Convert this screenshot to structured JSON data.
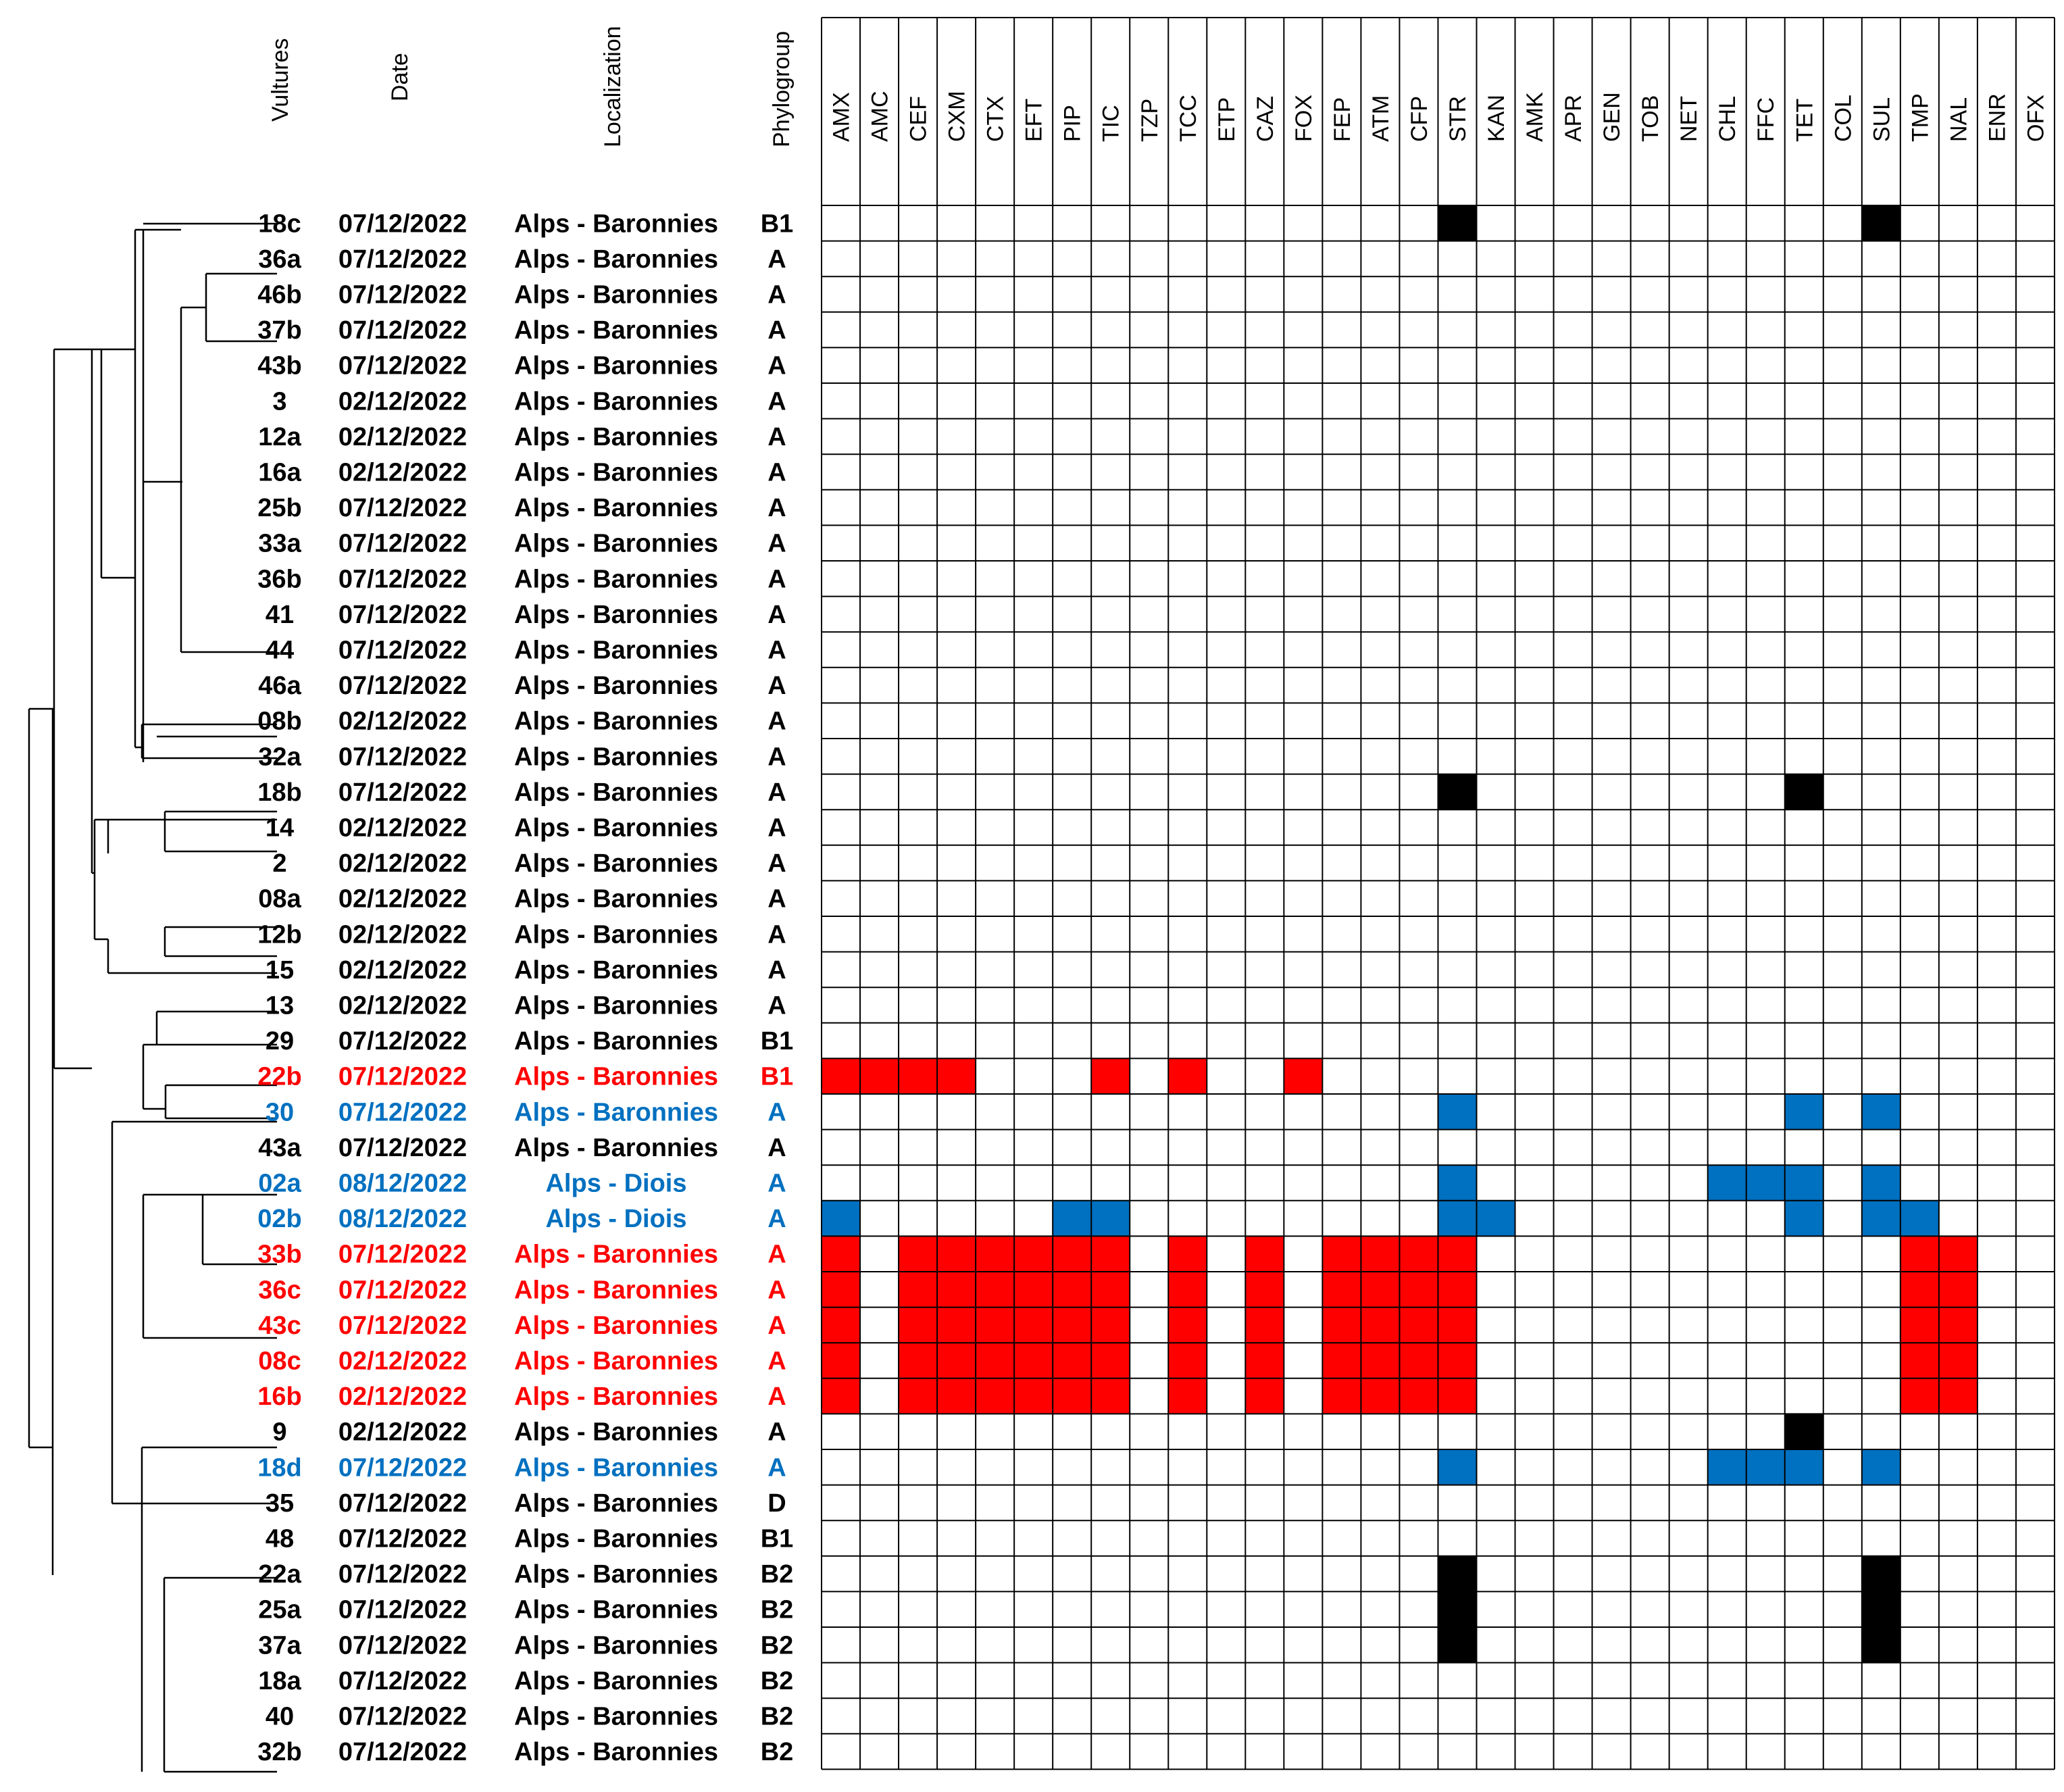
{
  "colors": {
    "black": "#000000",
    "red": "#ff0000",
    "blue": "#0070c0",
    "grid": "#000000",
    "background": "#ffffff"
  },
  "headers": {
    "vultures": "Vultures",
    "date": "Date",
    "localization": "Localization",
    "phylogroup": "Phylogroup"
  },
  "antibiotics": [
    "AMX",
    "AMC",
    "CEF",
    "CXM",
    "CTX",
    "EFT",
    "PIP",
    "TIC",
    "TZP",
    "TCC",
    "ETP",
    "CAZ",
    "FOX",
    "FEP",
    "ATM",
    "CFP",
    "STR",
    "KAN",
    "AMK",
    "APR",
    "GEN",
    "TOB",
    "NET",
    "CHL",
    "FFC",
    "TET",
    "COL",
    "SUL",
    "TMP",
    "NAL",
    "ENR",
    "OFX"
  ],
  "rows": [
    {
      "id": "18c",
      "date": "07/12/2022",
      "loc": "Alps - Baronnies",
      "phylo": "B1",
      "label_color": "black",
      "resistance": [
        [
          "STR",
          "black"
        ],
        [
          "SUL",
          "black"
        ]
      ]
    },
    {
      "id": "36a",
      "date": "07/12/2022",
      "loc": "Alps - Baronnies",
      "phylo": "A",
      "label_color": "black",
      "resistance": []
    },
    {
      "id": "46b",
      "date": "07/12/2022",
      "loc": "Alps - Baronnies",
      "phylo": "A",
      "label_color": "black",
      "resistance": []
    },
    {
      "id": "37b",
      "date": "07/12/2022",
      "loc": "Alps - Baronnies",
      "phylo": "A",
      "label_color": "black",
      "resistance": []
    },
    {
      "id": "43b",
      "date": "07/12/2022",
      "loc": "Alps - Baronnies",
      "phylo": "A",
      "label_color": "black",
      "resistance": []
    },
    {
      "id": "3",
      "date": "02/12/2022",
      "loc": "Alps - Baronnies",
      "phylo": "A",
      "label_color": "black",
      "resistance": []
    },
    {
      "id": "12a",
      "date": "02/12/2022",
      "loc": "Alps - Baronnies",
      "phylo": "A",
      "label_color": "black",
      "resistance": []
    },
    {
      "id": "16a",
      "date": "02/12/2022",
      "loc": "Alps - Baronnies",
      "phylo": "A",
      "label_color": "black",
      "resistance": []
    },
    {
      "id": "25b",
      "date": "07/12/2022",
      "loc": "Alps - Baronnies",
      "phylo": "A",
      "label_color": "black",
      "resistance": []
    },
    {
      "id": "33a",
      "date": "07/12/2022",
      "loc": "Alps - Baronnies",
      "phylo": "A",
      "label_color": "black",
      "resistance": []
    },
    {
      "id": "36b",
      "date": "07/12/2022",
      "loc": "Alps - Baronnies",
      "phylo": "A",
      "label_color": "black",
      "resistance": []
    },
    {
      "id": "41",
      "date": "07/12/2022",
      "loc": "Alps - Baronnies",
      "phylo": "A",
      "label_color": "black",
      "resistance": []
    },
    {
      "id": "44",
      "date": "07/12/2022",
      "loc": "Alps - Baronnies",
      "phylo": "A",
      "label_color": "black",
      "resistance": []
    },
    {
      "id": "46a",
      "date": "07/12/2022",
      "loc": "Alps - Baronnies",
      "phylo": "A",
      "label_color": "black",
      "resistance": []
    },
    {
      "id": "08b",
      "date": "02/12/2022",
      "loc": "Alps - Baronnies",
      "phylo": "A",
      "label_color": "black",
      "resistance": []
    },
    {
      "id": "32a",
      "date": "07/12/2022",
      "loc": "Alps - Baronnies",
      "phylo": "A",
      "label_color": "black",
      "resistance": []
    },
    {
      "id": "18b",
      "date": "07/12/2022",
      "loc": "Alps - Baronnies",
      "phylo": "A",
      "label_color": "black",
      "resistance": [
        [
          "STR",
          "black"
        ],
        [
          "TET",
          "black"
        ]
      ]
    },
    {
      "id": "14",
      "date": "02/12/2022",
      "loc": "Alps - Baronnies",
      "phylo": "A",
      "label_color": "black",
      "resistance": []
    },
    {
      "id": "2",
      "date": "02/12/2022",
      "loc": "Alps - Baronnies",
      "phylo": "A",
      "label_color": "black",
      "resistance": []
    },
    {
      "id": "08a",
      "date": "02/12/2022",
      "loc": "Alps - Baronnies",
      "phylo": "A",
      "label_color": "black",
      "resistance": []
    },
    {
      "id": "12b",
      "date": "02/12/2022",
      "loc": "Alps - Baronnies",
      "phylo": "A",
      "label_color": "black",
      "resistance": []
    },
    {
      "id": "15",
      "date": "02/12/2022",
      "loc": "Alps - Baronnies",
      "phylo": "A",
      "label_color": "black",
      "resistance": []
    },
    {
      "id": "13",
      "date": "02/12/2022",
      "loc": "Alps - Baronnies",
      "phylo": "A",
      "label_color": "black",
      "resistance": []
    },
    {
      "id": "29",
      "date": "07/12/2022",
      "loc": "Alps - Baronnies",
      "phylo": "B1",
      "label_color": "black",
      "resistance": []
    },
    {
      "id": "22b",
      "date": "07/12/2022",
      "loc": "Alps - Baronnies",
      "phylo": "B1",
      "label_color": "red",
      "resistance": [
        [
          "AMX",
          "red"
        ],
        [
          "AMC",
          "red"
        ],
        [
          "CEF",
          "red"
        ],
        [
          "CXM",
          "red"
        ],
        [
          "TIC",
          "red"
        ],
        [
          "TCC",
          "red"
        ],
        [
          "FOX",
          "red"
        ]
      ]
    },
    {
      "id": "30",
      "date": "07/12/2022",
      "loc": "Alps - Baronnies",
      "phylo": "A",
      "label_color": "blue",
      "resistance": [
        [
          "STR",
          "blue"
        ],
        [
          "TET",
          "blue"
        ],
        [
          "SUL",
          "blue"
        ]
      ]
    },
    {
      "id": "43a",
      "date": "07/12/2022",
      "loc": "Alps - Baronnies",
      "phylo": "A",
      "label_color": "black",
      "resistance": []
    },
    {
      "id": "02a",
      "date": "08/12/2022",
      "loc": "Alps - Diois",
      "phylo": "A",
      "label_color": "blue",
      "resistance": [
        [
          "STR",
          "blue"
        ],
        [
          "CHL",
          "blue"
        ],
        [
          "FFC",
          "blue"
        ],
        [
          "TET",
          "blue"
        ],
        [
          "SUL",
          "blue"
        ]
      ]
    },
    {
      "id": "02b",
      "date": "08/12/2022",
      "loc": "Alps - Diois",
      "phylo": "A",
      "label_color": "blue",
      "resistance": [
        [
          "AMX",
          "blue"
        ],
        [
          "PIP",
          "blue"
        ],
        [
          "TIC",
          "blue"
        ],
        [
          "STR",
          "blue"
        ],
        [
          "KAN",
          "blue"
        ],
        [
          "TET",
          "blue"
        ],
        [
          "SUL",
          "blue"
        ],
        [
          "TMP",
          "blue"
        ]
      ]
    },
    {
      "id": "33b",
      "date": "07/12/2022",
      "loc": "Alps - Baronnies",
      "phylo": "A",
      "label_color": "red",
      "resistance": [
        [
          "AMX",
          "red"
        ],
        [
          "CEF",
          "red"
        ],
        [
          "CXM",
          "red"
        ],
        [
          "CTX",
          "red"
        ],
        [
          "EFT",
          "red"
        ],
        [
          "PIP",
          "red"
        ],
        [
          "TIC",
          "red"
        ],
        [
          "TCC",
          "red"
        ],
        [
          "CAZ",
          "red"
        ],
        [
          "FEP",
          "red"
        ],
        [
          "ATM",
          "red"
        ],
        [
          "CFP",
          "red"
        ],
        [
          "STR",
          "red"
        ],
        [
          "TMP",
          "red"
        ],
        [
          "NAL",
          "red"
        ]
      ]
    },
    {
      "id": "36c",
      "date": "07/12/2022",
      "loc": "Alps - Baronnies",
      "phylo": "A",
      "label_color": "red",
      "resistance": [
        [
          "AMX",
          "red"
        ],
        [
          "CEF",
          "red"
        ],
        [
          "CXM",
          "red"
        ],
        [
          "CTX",
          "red"
        ],
        [
          "EFT",
          "red"
        ],
        [
          "PIP",
          "red"
        ],
        [
          "TIC",
          "red"
        ],
        [
          "TCC",
          "red"
        ],
        [
          "CAZ",
          "red"
        ],
        [
          "FEP",
          "red"
        ],
        [
          "ATM",
          "red"
        ],
        [
          "CFP",
          "red"
        ],
        [
          "STR",
          "red"
        ],
        [
          "TMP",
          "red"
        ],
        [
          "NAL",
          "red"
        ]
      ]
    },
    {
      "id": "43c",
      "date": "07/12/2022",
      "loc": "Alps - Baronnies",
      "phylo": "A",
      "label_color": "red",
      "resistance": [
        [
          "AMX",
          "red"
        ],
        [
          "CEF",
          "red"
        ],
        [
          "CXM",
          "red"
        ],
        [
          "CTX",
          "red"
        ],
        [
          "EFT",
          "red"
        ],
        [
          "PIP",
          "red"
        ],
        [
          "TIC",
          "red"
        ],
        [
          "TCC",
          "red"
        ],
        [
          "CAZ",
          "red"
        ],
        [
          "FEP",
          "red"
        ],
        [
          "ATM",
          "red"
        ],
        [
          "CFP",
          "red"
        ],
        [
          "STR",
          "red"
        ],
        [
          "TMP",
          "red"
        ],
        [
          "NAL",
          "red"
        ]
      ]
    },
    {
      "id": "08c",
      "date": "02/12/2022",
      "loc": "Alps - Baronnies",
      "phylo": "A",
      "label_color": "red",
      "resistance": [
        [
          "AMX",
          "red"
        ],
        [
          "CEF",
          "red"
        ],
        [
          "CXM",
          "red"
        ],
        [
          "CTX",
          "red"
        ],
        [
          "EFT",
          "red"
        ],
        [
          "PIP",
          "red"
        ],
        [
          "TIC",
          "red"
        ],
        [
          "TCC",
          "red"
        ],
        [
          "CAZ",
          "red"
        ],
        [
          "FEP",
          "red"
        ],
        [
          "ATM",
          "red"
        ],
        [
          "CFP",
          "red"
        ],
        [
          "STR",
          "red"
        ],
        [
          "TMP",
          "red"
        ],
        [
          "NAL",
          "red"
        ]
      ]
    },
    {
      "id": "16b",
      "date": "02/12/2022",
      "loc": "Alps - Baronnies",
      "phylo": "A",
      "label_color": "red",
      "resistance": [
        [
          "AMX",
          "red"
        ],
        [
          "CEF",
          "red"
        ],
        [
          "CXM",
          "red"
        ],
        [
          "CTX",
          "red"
        ],
        [
          "EFT",
          "red"
        ],
        [
          "PIP",
          "red"
        ],
        [
          "TIC",
          "red"
        ],
        [
          "TCC",
          "red"
        ],
        [
          "CAZ",
          "red"
        ],
        [
          "FEP",
          "red"
        ],
        [
          "ATM",
          "red"
        ],
        [
          "CFP",
          "red"
        ],
        [
          "STR",
          "red"
        ],
        [
          "TMP",
          "red"
        ],
        [
          "NAL",
          "red"
        ]
      ]
    },
    {
      "id": "9",
      "date": "02/12/2022",
      "loc": "Alps - Baronnies",
      "phylo": "A",
      "label_color": "black",
      "resistance": [
        [
          "TET",
          "black"
        ]
      ]
    },
    {
      "id": "18d",
      "date": "07/12/2022",
      "loc": "Alps - Baronnies",
      "phylo": "A",
      "label_color": "blue",
      "resistance": [
        [
          "STR",
          "blue"
        ],
        [
          "CHL",
          "blue"
        ],
        [
          "FFC",
          "blue"
        ],
        [
          "TET",
          "blue"
        ],
        [
          "SUL",
          "blue"
        ]
      ]
    },
    {
      "id": "35",
      "date": "07/12/2022",
      "loc": "Alps - Baronnies",
      "phylo": "D",
      "label_color": "black",
      "resistance": []
    },
    {
      "id": "48",
      "date": "07/12/2022",
      "loc": "Alps - Baronnies",
      "phylo": "B1",
      "label_color": "black",
      "resistance": []
    },
    {
      "id": "22a",
      "date": "07/12/2022",
      "loc": "Alps - Baronnies",
      "phylo": "B2",
      "label_color": "black",
      "resistance": [
        [
          "STR",
          "black"
        ],
        [
          "SUL",
          "black"
        ]
      ]
    },
    {
      "id": "25a",
      "date": "07/12/2022",
      "loc": "Alps - Baronnies",
      "phylo": "B2",
      "label_color": "black",
      "resistance": [
        [
          "STR",
          "black"
        ],
        [
          "SUL",
          "black"
        ]
      ]
    },
    {
      "id": "37a",
      "date": "07/12/2022",
      "loc": "Alps - Baronnies",
      "phylo": "B2",
      "label_color": "black",
      "resistance": [
        [
          "STR",
          "black"
        ],
        [
          "SUL",
          "black"
        ]
      ]
    },
    {
      "id": "18a",
      "date": "07/12/2022",
      "loc": "Alps - Baronnies",
      "phylo": "B2",
      "label_color": "black",
      "resistance": []
    },
    {
      "id": "40",
      "date": "07/12/2022",
      "loc": "Alps - Baronnies",
      "phylo": "B2",
      "label_color": "black",
      "resistance": []
    },
    {
      "id": "32b",
      "date": "07/12/2022",
      "loc": "Alps - Baronnies",
      "phylo": "B2",
      "label_color": "black",
      "resistance": []
    }
  ]
}
